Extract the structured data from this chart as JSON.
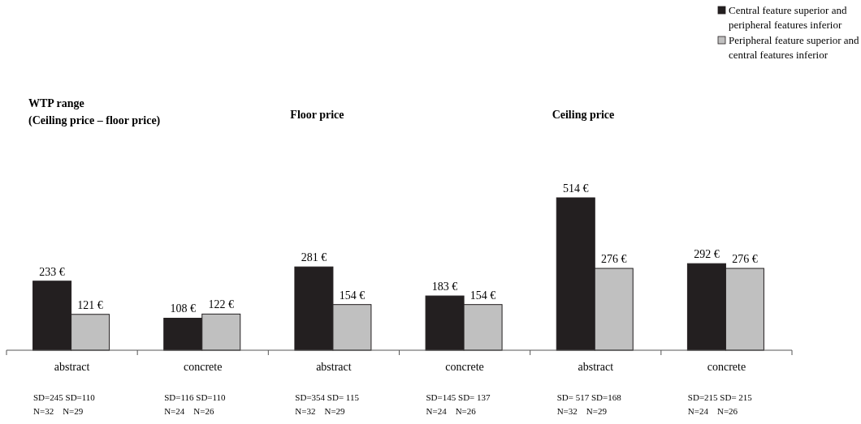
{
  "chart_data": {
    "type": "bar",
    "categories": [
      "abstract",
      "concrete",
      "abstract",
      "concrete",
      "abstract",
      "concrete"
    ],
    "series": [
      {
        "name": "Central feature superior and peripheral features inferior",
        "color": "#231f20",
        "values": [
          233,
          108,
          281,
          183,
          514,
          292
        ],
        "value_labels": [
          "233 €",
          "108 €",
          "281 €",
          "183 €",
          "514 €",
          "292 €"
        ]
      },
      {
        "name": "Peripheral feature superior and central features inferior",
        "color": "#c0c0c0",
        "values": [
          121,
          122,
          154,
          154,
          276,
          276
        ],
        "value_labels": [
          "121 €",
          "122 €",
          "154 €",
          "154 €",
          "276 €",
          "276 €"
        ]
      }
    ],
    "annotations": [
      "WTP range\n(Ceiling price – floor price)",
      "Floor price",
      "Ceiling price",
      "SD=245 SD=110\nN=32    N=29",
      "SD=116 SD=110\nN=24    N=26",
      "SD=354 SD= 115\nN=32    N=29",
      "SD=145 SD= 137\nN=24    N=26",
      "SD= 517 SD=168\nN=32    N=29",
      "SD=215 SD= 215\nN=24    N=26"
    ],
    "legend": "top right"
  }
}
